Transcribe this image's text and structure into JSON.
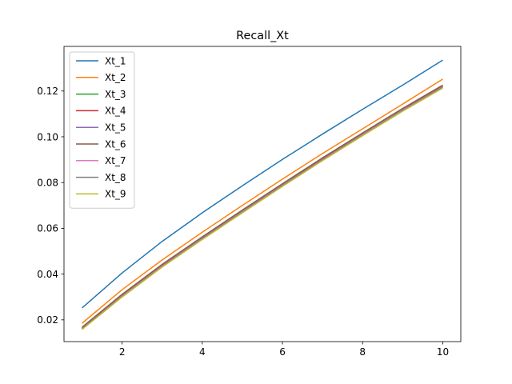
{
  "chart_data": {
    "type": "line",
    "title": "Recall_Xt",
    "xlabel": "",
    "ylabel": "",
    "xlim": [
      0.55,
      10.45
    ],
    "ylim": [
      0.0105,
      0.1395
    ],
    "xticks": [
      2,
      4,
      6,
      8,
      10
    ],
    "yticks": [
      0.02,
      0.04,
      0.06,
      0.08,
      0.1,
      0.12
    ],
    "ytick_labels": [
      "0.02",
      "0.04",
      "0.06",
      "0.08",
      "0.10",
      "0.12"
    ],
    "xtick_labels": [
      "2",
      "4",
      "6",
      "8",
      "10"
    ],
    "grid": false,
    "legend_position": "top-left",
    "x": [
      1,
      2,
      3,
      4,
      5,
      6,
      7,
      8,
      9,
      10
    ],
    "series": [
      {
        "name": "Xt_1",
        "color": "#1f77b4",
        "values": [
          0.0252,
          0.0405,
          0.0543,
          0.0668,
          0.0786,
          0.0901,
          0.1012,
          0.112,
          0.1226,
          0.1335
        ]
      },
      {
        "name": "Xt_2",
        "color": "#ff7f0e",
        "values": [
          0.0185,
          0.0332,
          0.0462,
          0.0583,
          0.07,
          0.0815,
          0.0927,
          0.1035,
          0.1143,
          0.1252
        ]
      },
      {
        "name": "Xt_3",
        "color": "#2ca02c",
        "values": [
          0.0168,
          0.0312,
          0.0443,
          0.0563,
          0.068,
          0.0795,
          0.0908,
          0.1017,
          0.1124,
          0.1226
        ]
      },
      {
        "name": "Xt_4",
        "color": "#d62728",
        "values": [
          0.0166,
          0.031,
          0.0441,
          0.0561,
          0.0678,
          0.0793,
          0.0906,
          0.1015,
          0.1122,
          0.1224
        ]
      },
      {
        "name": "Xt_5",
        "color": "#9467bd",
        "values": [
          0.0164,
          0.0308,
          0.0439,
          0.0559,
          0.0676,
          0.0791,
          0.0904,
          0.1013,
          0.112,
          0.1222
        ]
      },
      {
        "name": "Xt_6",
        "color": "#8c564b",
        "values": [
          0.0163,
          0.0306,
          0.0437,
          0.0557,
          0.0674,
          0.0789,
          0.0902,
          0.1011,
          0.1118,
          0.122
        ]
      },
      {
        "name": "Xt_7",
        "color": "#e377c2",
        "values": [
          0.0161,
          0.0304,
          0.0435,
          0.0555,
          0.0672,
          0.0787,
          0.09,
          0.1009,
          0.1116,
          0.1218
        ]
      },
      {
        "name": "Xt_8",
        "color": "#7f7f7f",
        "values": [
          0.016,
          0.0302,
          0.0433,
          0.0553,
          0.067,
          0.0785,
          0.0898,
          0.1007,
          0.1114,
          0.1216
        ]
      },
      {
        "name": "Xt_9",
        "color": "#bcbd22",
        "values": [
          0.0158,
          0.03,
          0.0431,
          0.0551,
          0.0668,
          0.0783,
          0.0896,
          0.1005,
          0.1112,
          0.1213
        ]
      }
    ]
  }
}
